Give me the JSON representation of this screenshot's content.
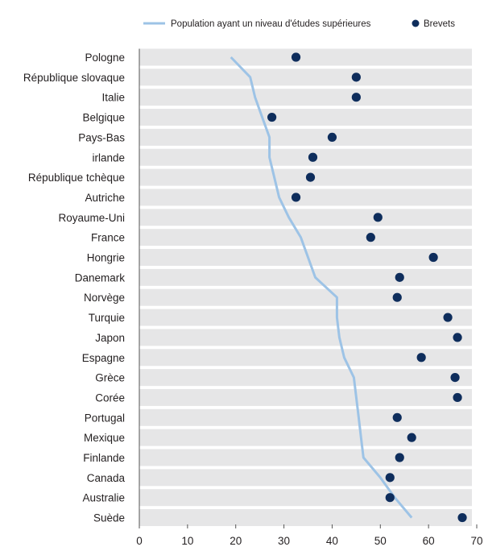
{
  "chart_data": {
    "type": "scatter",
    "categories": [
      "Pologne",
      "République slovaque",
      "Italie",
      "Belgique",
      "Pays-Bas",
      "irlande",
      "République tchèque",
      "Autriche",
      "Royaume-Uni",
      "France",
      "Hongrie",
      "Danemark",
      "Norvège",
      "Turquie",
      "Japon",
      "Espagne",
      "Grèce",
      "Corée",
      "Portugal",
      "Mexique",
      "Finlande",
      "Canada",
      "Australie",
      "Suède"
    ],
    "series": [
      {
        "name": "Population ayant un niveau d'études supérieures",
        "type": "line",
        "color": "#9dc3e6",
        "values": [
          19,
          23,
          24,
          25.5,
          27,
          27,
          28,
          29,
          31,
          33.5,
          35,
          36.5,
          41,
          41,
          41.5,
          42.5,
          44.5,
          45,
          45.5,
          46,
          46.5,
          50,
          53,
          56.5
        ]
      },
      {
        "name": "Brevets",
        "type": "scatter",
        "color": "#0e2d5c",
        "values": [
          32.5,
          45,
          45,
          27.5,
          40,
          36,
          35.5,
          32.5,
          49.5,
          48,
          61,
          54,
          53.5,
          64,
          66,
          58.5,
          65.5,
          66,
          53.5,
          56.5,
          54,
          52,
          52,
          67
        ]
      }
    ],
    "xlim": [
      0,
      70
    ],
    "xticks": [
      "0",
      "10",
      "20",
      "30",
      "40",
      "50",
      "60",
      "70"
    ],
    "grid": "alternating-row-bands",
    "legend": "top"
  }
}
